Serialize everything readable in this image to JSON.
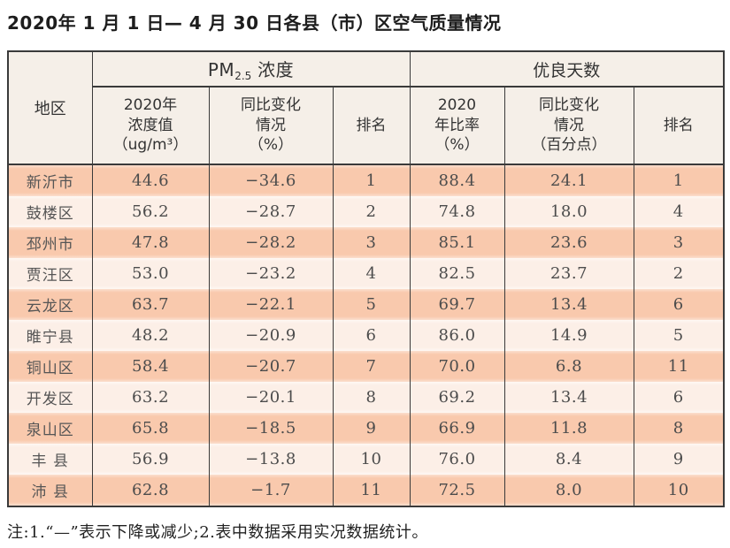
{
  "title": "2020年 1 月 1 日— 4 月 30 日各县（市）区空气质量情况",
  "note": "注:1.“—”表示下降或减少;2.表中数据采用实况数据统计。",
  "colors": {
    "row_stripe_dark": "#f9c9ad",
    "row_stripe_light": "#fcefe7",
    "header_bg": "#f5efe8",
    "border": "#3a3a3a"
  },
  "table": {
    "region_header": "地区",
    "group_pm": {
      "prefix": "PM",
      "subscript": "2.5",
      "suffix": " 浓度"
    },
    "group_good": "优良天数",
    "subheaders": {
      "pm_value": "2020年\n浓度值\n（ug/m³）",
      "pm_change": "同比变化\n情况\n（%）",
      "pm_rank": "排名",
      "good_ratio": "2020\n年比率\n（%）",
      "good_change": "同比变化\n情况\n（百分点）",
      "good_rank": "排名"
    },
    "rows": [
      {
        "region": "新沂市",
        "pm": "44.6",
        "pm_change": "−34.6",
        "pm_rank": "1",
        "good": "88.4",
        "good_change": "24.1",
        "good_rank": "1"
      },
      {
        "region": "鼓楼区",
        "pm": "56.2",
        "pm_change": "−28.7",
        "pm_rank": "2",
        "good": "74.8",
        "good_change": "18.0",
        "good_rank": "4"
      },
      {
        "region": "邳州市",
        "pm": "47.8",
        "pm_change": "−28.2",
        "pm_rank": "3",
        "good": "85.1",
        "good_change": "23.6",
        "good_rank": "3"
      },
      {
        "region": "贾汪区",
        "pm": "53.0",
        "pm_change": "−23.2",
        "pm_rank": "4",
        "good": "82.5",
        "good_change": "23.7",
        "good_rank": "2"
      },
      {
        "region": "云龙区",
        "pm": "63.7",
        "pm_change": "−22.1",
        "pm_rank": "5",
        "good": "69.7",
        "good_change": "13.4",
        "good_rank": "6"
      },
      {
        "region": "睢宁县",
        "pm": "48.2",
        "pm_change": "−20.9",
        "pm_rank": "6",
        "good": "86.0",
        "good_change": "14.9",
        "good_rank": "5"
      },
      {
        "region": "铜山区",
        "pm": "58.4",
        "pm_change": "−20.7",
        "pm_rank": "7",
        "good": "70.0",
        "good_change": "6.8",
        "good_rank": "11"
      },
      {
        "region": "开发区",
        "pm": "63.2",
        "pm_change": "−20.1",
        "pm_rank": "8",
        "good": "69.2",
        "good_change": "13.4",
        "good_rank": "6"
      },
      {
        "region": "泉山区",
        "pm": "65.8",
        "pm_change": "−18.5",
        "pm_rank": "9",
        "good": "66.9",
        "good_change": "11.8",
        "good_rank": "8"
      },
      {
        "region": "丰 县",
        "pm": "56.9",
        "pm_change": "−13.8",
        "pm_rank": "10",
        "good": "76.0",
        "good_change": "8.4",
        "good_rank": "9"
      },
      {
        "region": "沛 县",
        "pm": "62.8",
        "pm_change": "−1.7",
        "pm_rank": "11",
        "good": "72.5",
        "good_change": "8.0",
        "good_rank": "10"
      }
    ]
  }
}
